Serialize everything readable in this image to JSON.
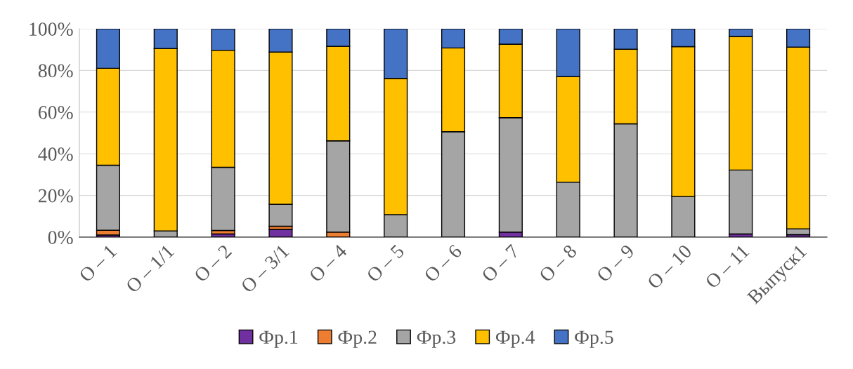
{
  "chart_data": {
    "type": "bar",
    "stacked": true,
    "categories": [
      "О – 1",
      "О – 1/1",
      "О – 2",
      "О – 3/1",
      "О – 4",
      "О – 5",
      "О – 6",
      "О – 7",
      "О – 8",
      "О – 9",
      "О – 10",
      "О – 11",
      "Выпуск1"
    ],
    "series": [
      {
        "name": "Фр.1",
        "color": "#7030a0",
        "values": [
          1,
          0,
          1.5,
          3.7,
          null,
          null,
          0,
          2.4,
          0,
          null,
          0,
          1.5,
          1.2
        ]
      },
      {
        "name": "Фр.2",
        "color": "#ed7d31",
        "values": [
          2.3,
          0,
          1.7,
          1.5,
          2.4,
          0,
          0,
          0,
          0,
          0,
          0,
          null,
          0
        ]
      },
      {
        "name": "Фр.3",
        "color": "#a5a5a5",
        "values": [
          31.2,
          3,
          30.3,
          10.6,
          43.8,
          10.8,
          50.6,
          54.9,
          26.4,
          54.4,
          19.5,
          30.7,
          2.8
        ]
      },
      {
        "name": "Фр.4",
        "color": "#ffc000",
        "values": [
          46.5,
          87.5,
          56.2,
          73,
          45.4,
          65.4,
          40.2,
          35.3,
          50.6,
          35.8,
          71.9,
          64.1,
          87.2
        ]
      },
      {
        "name": "Фр.5",
        "color": "#4472c4",
        "values": [
          19,
          9.5,
          10.3,
          11.2,
          8.4,
          23.8,
          9.2,
          7.4,
          23,
          9.8,
          8.6,
          3.7,
          8.8
        ]
      }
    ],
    "ylim": [
      0,
      100
    ],
    "yticks": [
      {
        "value": 0,
        "label": "0%"
      },
      {
        "value": 20,
        "label": "20%"
      },
      {
        "value": 40,
        "label": "40%"
      },
      {
        "value": 60,
        "label": "60%"
      },
      {
        "value": 80,
        "label": "80%"
      },
      {
        "value": 100,
        "label": "100%"
      }
    ],
    "grid": "y",
    "legend": "bottom"
  }
}
